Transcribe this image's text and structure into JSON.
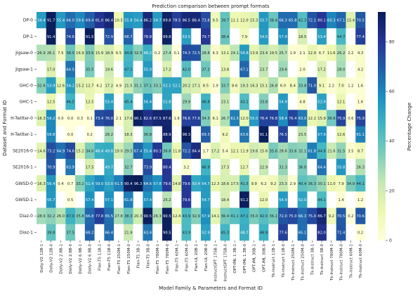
{
  "chart_data": {
    "type": "heatmap",
    "title": "Prediction comparison between prompt formats",
    "xlabel": "Model Family & Parameters and Format ID",
    "ylabel": "Dataset and Format ID",
    "colorbar_label": "Percentage Change",
    "colorbar_ticks": [
      0,
      20,
      40,
      60,
      80
    ],
    "vmin": 0,
    "vmax": 92,
    "colormap": "YlGnBu",
    "blank_color": "#ffffff",
    "rows": [
      "DP-0",
      "DP-1",
      "Jigsaw-0",
      "Jigsaw-1",
      "GHC-0",
      "GHC-1",
      "H-Twitter-0",
      "H-Twitter-1",
      "SE2016-0",
      "SE2016-1",
      "GWSD-0",
      "GWSD-1",
      "Diaz-0",
      "Diaz-1"
    ],
    "columns": [
      "Dolly-V2 12B-1",
      "Dolly-V2 12B-0",
      "Dolly-V2 2.8B-1",
      "Dolly-V2 2.8B-0",
      "Dolly-V2 6.9B-1",
      "Dolly-V2 6.9B-0",
      "Flan-T5 11B-1",
      "Flan-T5 11B-0",
      "Flan-T5 250M-1",
      "Flan-T5 250M-0",
      "Flan-T5 3B-1",
      "Flan-T5 3B-0",
      "Flan-T5 780M-1",
      "Flan-T5 780M-0",
      "Flan-T5 60M-1",
      "Flan-T5 60M-0",
      "Flan-UL 20B-1",
      "Flan-UL 20B-0",
      "InstructGPT 175B-1",
      "InstructGPT 175B-0",
      "OPT-IML 1.3B-1",
      "OPT-IML 1.3B-0",
      "OPT-IML 30B-1",
      "OPT-IML 30B-0",
      "Tk-Instruct 11B-1",
      "Tk-Instruct 11B-0",
      "Tk-Instruct 250M-1",
      "Tk-Instruct 250M-0",
      "Tk-Instruct 3B-1",
      "Tk-Instruct 3B-0",
      "Tk-Instruct 780M-1",
      "Tk-Instruct 780M-0",
      "Tk-Instruct 60M-1",
      "Tk-Instruct 60M-0"
    ],
    "values": [
      [
        54.4,
        91.7,
        55.4,
        66.0,
        59.6,
        69.4,
        81.0,
        86.4,
        10.5,
        55.8,
        54.4,
        86.2,
        54.7,
        89.8,
        78.5,
        86.5,
        86.4,
        73.8,
        9.5,
        39.7,
        11.1,
        12.0,
        15.3,
        55.7,
        38.4,
        66.3,
        65.8,
        42.3,
        72.1,
        80.1,
        60.3,
        67.1,
        15.4,
        70.5
      ],
      [
        null,
        91.4,
        null,
        74.6,
        null,
        91.5,
        null,
        72.9,
        null,
        68.7,
        null,
        78.8,
        null,
        89.8,
        null,
        53.5,
        null,
        79.7,
        null,
        38.4,
        null,
        7.9,
        null,
        54.5,
        null,
        57.9,
        null,
        18.5,
        null,
        53.4,
        null,
        44.7,
        null,
        77.4
      ],
      [
        26.9,
        26.1,
        7.5,
        38.0,
        16.9,
        33.6,
        15.9,
        18.9,
        6.5,
        44.8,
        32.9,
        48.2,
        0.2,
        27.4,
        0.1,
        74.3,
        72.5,
        28.8,
        4.3,
        13.1,
        24.1,
        54.8,
        13.9,
        23.4,
        19.5,
        25.7,
        1.9,
        2.1,
        12.9,
        6.7,
        11.6,
        26.2,
        2.2,
        4.3
      ],
      [
        null,
        17.0,
        null,
        64.5,
        null,
        35.5,
        null,
        19.6,
        null,
        47.1,
        null,
        55.0,
        null,
        17.2,
        null,
        42.0,
        null,
        37.2,
        null,
        13.8,
        null,
        67.1,
        null,
        23.7,
        null,
        29.6,
        null,
        2.0,
        null,
        17.2,
        null,
        28.0,
        null,
        4.2
      ],
      [
        32.6,
        53.9,
        12.6,
        54.2,
        15.2,
        12.7,
        6.2,
        17.2,
        4.9,
        21.5,
        31.1,
        37.1,
        33.1,
        52.1,
        52.1,
        20.2,
        17.1,
        8.5,
        1.9,
        33.7,
        8.6,
        19.3,
        16.3,
        15.1,
        26.8,
        6.0,
        8.4,
        33.8,
        71.0,
        9.1,
        2.2,
        7.0,
        1.2,
        1.6
      ],
      [
        null,
        12.5,
        null,
        46.5,
        null,
        12.5,
        null,
        53.4,
        null,
        45.4,
        null,
        56.4,
        null,
        51.8,
        null,
        29.9,
        null,
        46.8,
        null,
        23.1,
        null,
        43.1,
        null,
        33.8,
        null,
        54.9,
        null,
        4.8,
        null,
        52.9,
        null,
        12.1,
        null,
        1.6
      ],
      [
        16.3,
        59.2,
        0.0,
        0.0,
        0.3,
        0.1,
        73.4,
        76.0,
        2.1,
        17.6,
        90.1,
        82.6,
        87.5,
        87.6,
        1.9,
        76.6,
        77.6,
        34.3,
        6.1,
        26.7,
        61.5,
        12.0,
        55.0,
        76.4,
        76.8,
        58.4,
        76.4,
        63.0,
        12.2,
        15.9,
        36.6,
        75.9,
        0.6,
        75.9
      ],
      [
        null,
        59.8,
        null,
        0.0,
        null,
        0.2,
        null,
        28.2,
        null,
        18.3,
        null,
        36.8,
        null,
        88.9,
        null,
        98.3,
        null,
        69.3,
        null,
        9.2,
        null,
        63.6,
        null,
        91.1,
        null,
        76.5,
        null,
        23.5,
        null,
        57.9,
        null,
        12.6,
        null,
        61.1
      ],
      [
        14.6,
        73.2,
        64.9,
        74.6,
        15.2,
        34.6,
        48.4,
        49.8,
        19.0,
        29.5,
        67.4,
        55.4,
        80.3,
        36.8,
        11.8,
        72.2,
        84.4,
        1.7,
        17.2,
        5.4,
        12.1,
        11.9,
        19.6,
        15.6,
        35.6,
        28.6,
        33.6,
        32.1,
        61.8,
        44.8,
        21.6,
        31.5,
        3.5,
        8.7
      ],
      [
        null,
        70.9,
        null,
        63.9,
        null,
        17.5,
        null,
        49.7,
        null,
        32.7,
        null,
        73.9,
        null,
        80.4,
        null,
        3.2,
        null,
        46.9,
        null,
        17.3,
        null,
        12.7,
        null,
        22.9,
        null,
        31.3,
        null,
        36.0,
        null,
        64.4,
        null,
        55.8,
        null,
        26.3
      ],
      [
        16.3,
        56.4,
        0.4,
        0.7,
        33.2,
        51.4,
        59.0,
        53.0,
        61.5,
        90.4,
        96.3,
        64.6,
        57.8,
        79.6,
        14.8,
        79.6,
        50.4,
        54.7,
        12.3,
        18.6,
        17.5,
        41.5,
        9.9,
        6.2,
        9.2,
        23.3,
        2.9,
        40.4,
        36.3,
        30.1,
        11.0,
        7.9,
        34.9,
        44.1
      ],
      [
        null,
        55.7,
        null,
        0.5,
        null,
        57.4,
        null,
        57.1,
        null,
        61.8,
        null,
        57.4,
        null,
        25.2,
        null,
        79.6,
        null,
        54.7,
        null,
        18.4,
        null,
        91.2,
        null,
        12.0,
        null,
        54.9,
        null,
        52.0,
        null,
        44.1,
        null,
        1.4,
        null,
        1.2
      ],
      [
        28.9,
        32.2,
        26.0,
        47.0,
        35.8,
        66.8,
        77.8,
        65.5,
        27.8,
        38.3,
        20.3,
        90.5,
        26.3,
        90.5,
        12.4,
        43.9,
        32.9,
        57.9,
        14.1,
        36.4,
        41.1,
        47.1,
        35.0,
        42.0,
        36.1,
        72.0,
        75.0,
        66.3,
        75.0,
        86.7,
        9.2,
        70.5,
        0.2,
        70.6
      ],
      [
        null,
        39.8,
        null,
        37.5,
        null,
        68.2,
        null,
        66.4,
        null,
        21.9,
        null,
        63.4,
        null,
        90.5,
        null,
        43.9,
        null,
        52.9,
        null,
        45.3,
        null,
        48.7,
        null,
        46.9,
        null,
        77.6,
        null,
        65.1,
        null,
        82.0,
        null,
        71.4,
        null,
        0.2
      ]
    ]
  }
}
